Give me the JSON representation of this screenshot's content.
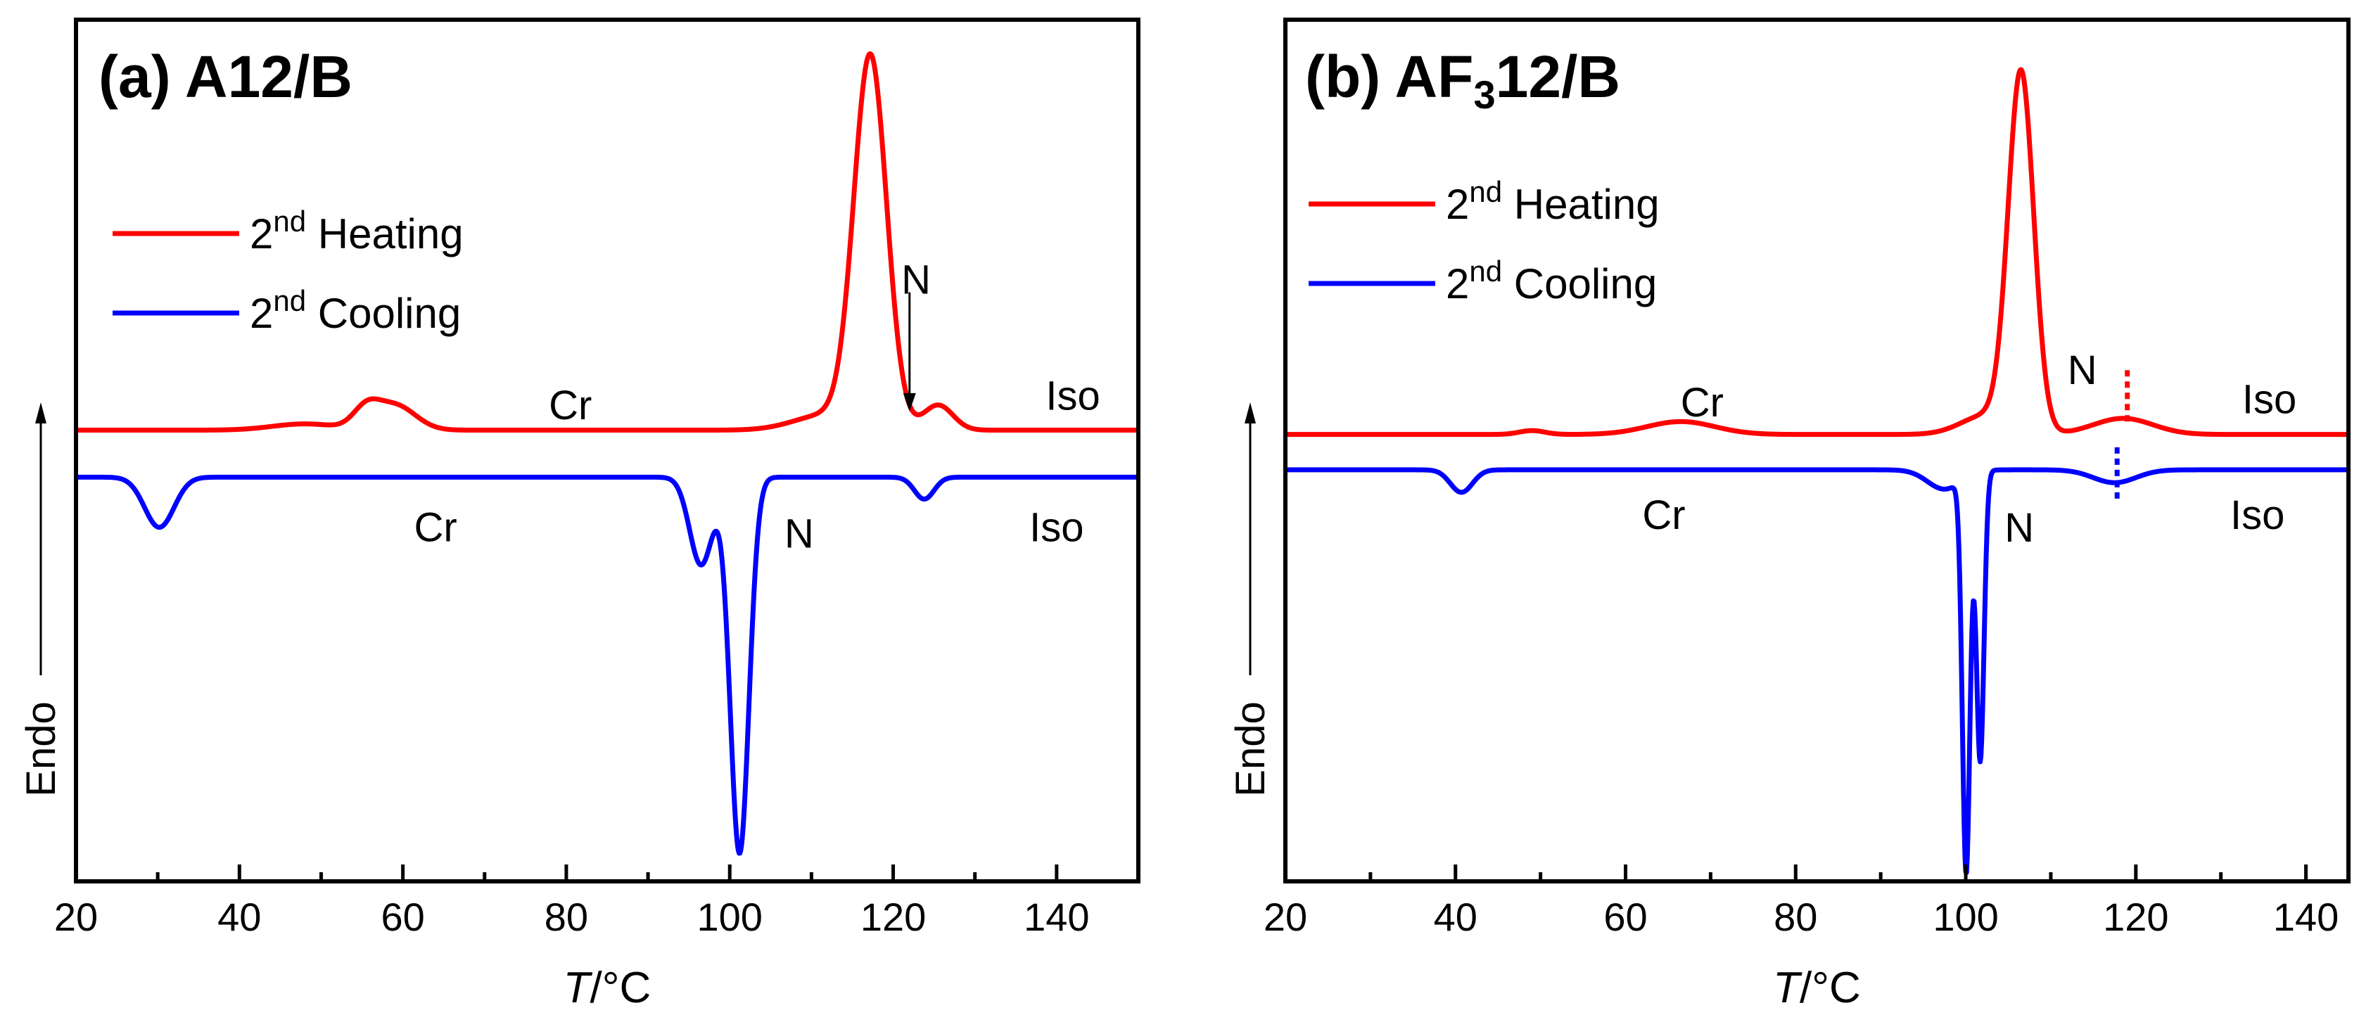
{
  "chart_data": [
    {
      "type": "line",
      "panel_label": "(a)",
      "title": "A12/B",
      "xlabel_var": "T",
      "xlabel_unit": "/°C",
      "ylabel": "Endo",
      "xlim": [
        20,
        150
      ],
      "xticks": [
        20,
        40,
        60,
        80,
        100,
        120,
        140
      ],
      "yunits": "arbitrary (heat flow, endothermic up)",
      "colors": {
        "heating": "#ff0000",
        "cooling": "#0000ff",
        "arrow": "#000000"
      },
      "legend": {
        "placement": "top-left",
        "entries": [
          {
            "key": "heating",
            "base": "2",
            "sup": "nd",
            "text": " Heating"
          },
          {
            "key": "cooling",
            "base": "2",
            "sup": "nd",
            "text": " Cooling"
          }
        ]
      },
      "series": [
        {
          "name": "2nd Heating",
          "key": "heating",
          "baseline": 0.0,
          "features": [
            {
              "center": 55.5,
              "amp": 0.06,
              "width": 1.6
            },
            {
              "center": 59,
              "amp": 0.08,
              "width": 2.5
            },
            {
              "center": 48,
              "amp": 0.02,
              "width": 4
            },
            {
              "center": 117.2,
              "amp": 1.18,
              "width": 2.0
            },
            {
              "center": 112,
              "amp": 0.05,
              "width": 4
            },
            {
              "center": 125.5,
              "amp": 0.08,
              "width": 1.8
            }
          ]
        },
        {
          "name": "2nd Cooling",
          "key": "cooling",
          "baseline": -0.15,
          "features": [
            {
              "center": 30.2,
              "amp": -0.16,
              "width": 1.8
            },
            {
              "center": 96.5,
              "amp": -0.28,
              "width": 1.4
            },
            {
              "center": 101.2,
              "amp": -1.2,
              "width": 1.15
            },
            {
              "center": 123.8,
              "amp": -0.07,
              "width": 1.2
            }
          ]
        }
      ],
      "annotations": [
        {
          "text": "Cr",
          "x": 80.5,
          "y": 0.08
        },
        {
          "text": "N",
          "x": 122.8,
          "y": 0.48
        },
        {
          "text": "Iso",
          "x": 142,
          "y": 0.11
        },
        {
          "text": "Cr",
          "x": 64,
          "y": -0.31
        },
        {
          "text": "N",
          "x": 108.5,
          "y": -0.33
        },
        {
          "text": "Iso",
          "x": 140,
          "y": -0.31
        }
      ],
      "arrows": [
        {
          "x": 122,
          "y_from": 0.44,
          "y_to": 0.06
        }
      ]
    },
    {
      "type": "line",
      "panel_label": "(b)",
      "title_main": "AF",
      "title_sub": "3",
      "title_rest": "12/B",
      "xlabel_var": "T",
      "xlabel_unit": "/°C",
      "ylabel": "Endo",
      "xlim": [
        20,
        145
      ],
      "xticks": [
        20,
        40,
        60,
        80,
        100,
        120,
        140
      ],
      "yunits": "arbitrary (heat flow, endothermic up)",
      "colors": {
        "heating": "#ff0000",
        "cooling": "#0000ff",
        "marker_heating": "#ff0000",
        "marker_cooling": "#0000ff"
      },
      "legend": {
        "placement": "top-left",
        "entries": [
          {
            "key": "heating",
            "base": "2",
            "sup": "nd",
            "text": " Heating"
          },
          {
            "key": "cooling",
            "base": "2",
            "sup": "nd",
            "text": " Cooling"
          }
        ]
      },
      "series": [
        {
          "name": "2nd Heating",
          "key": "heating",
          "baseline": 0.0,
          "features": [
            {
              "center": 49,
              "amp": 0.012,
              "width": 1.5
            },
            {
              "center": 66.5,
              "amp": 0.04,
              "width": 4
            },
            {
              "center": 106.5,
              "amp": 1.11,
              "width": 1.5
            },
            {
              "center": 102.5,
              "amp": 0.06,
              "width": 3
            },
            {
              "center": 118.5,
              "amp": 0.05,
              "width": 3.5
            }
          ]
        },
        {
          "name": "2nd Cooling",
          "key": "cooling",
          "baseline": -0.11,
          "features": [
            {
              "center": 40.7,
              "amp": -0.07,
              "width": 1.3
            },
            {
              "center": 97.5,
              "amp": -0.06,
              "width": 2.0
            },
            {
              "center": 100.05,
              "amp": -1.23,
              "width": 0.45
            },
            {
              "center": 101.7,
              "amp": -0.9,
              "width": 0.45
            },
            {
              "center": 117.5,
              "amp": -0.04,
              "width": 2.5
            }
          ]
        }
      ],
      "annotations": [
        {
          "text": "Cr",
          "x": 69,
          "y": 0.1
        },
        {
          "text": "N",
          "x": 113.7,
          "y": 0.2
        },
        {
          "text": "Iso",
          "x": 135.7,
          "y": 0.11
        },
        {
          "text": "Cr",
          "x": 64.5,
          "y": -0.25
        },
        {
          "text": "N",
          "x": 106.3,
          "y": -0.29
        },
        {
          "text": "Iso",
          "x": 134.3,
          "y": -0.25
        }
      ],
      "markers": [
        {
          "key": "heating",
          "x": 119,
          "y_from": 0.2,
          "y_to": 0.03
        },
        {
          "key": "cooling",
          "x": 117.8,
          "y_from": -0.04,
          "y_to": -0.21
        }
      ]
    }
  ]
}
